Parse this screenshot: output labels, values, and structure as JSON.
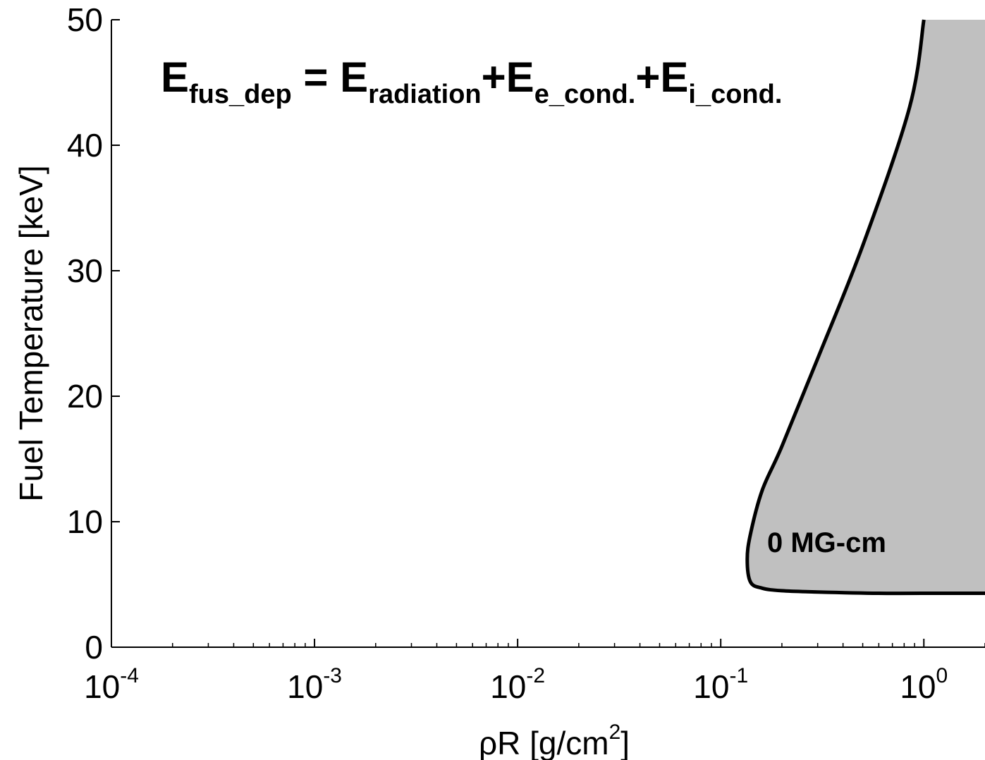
{
  "chart_data": {
    "type": "area",
    "title": "",
    "equation": {
      "lhs_main": "E",
      "lhs_sub": "fus_dep",
      "equals": " = ",
      "t1_main": "E",
      "t1_sub": "radiation",
      "plus1": "+",
      "t2_main": "E",
      "t2_sub": "e_cond.",
      "plus2": "+",
      "t3_main": "E",
      "t3_sub": "i_cond."
    },
    "xlabel": {
      "prefix": "ρR [g/cm",
      "sup": "2",
      "suffix": "]"
    },
    "ylabel": "Fuel Temperature [keV]",
    "x_scale": "log",
    "xlim": [
      0.0001,
      2
    ],
    "ylim": [
      0,
      50
    ],
    "x_ticks": [
      {
        "base": "10",
        "exp": "-4",
        "value": 0.0001
      },
      {
        "base": "10",
        "exp": "-3",
        "value": 0.001
      },
      {
        "base": "10",
        "exp": "-2",
        "value": 0.01
      },
      {
        "base": "10",
        "exp": "-1",
        "value": 0.1
      },
      {
        "base": "10",
        "exp": "0",
        "value": 1
      }
    ],
    "y_ticks": [
      "0",
      "10",
      "20",
      "30",
      "40",
      "50"
    ],
    "grid": false,
    "fill_color": "#c0c0c0",
    "line_color": "#000000",
    "region_label": "0 MG-cm",
    "series": [
      {
        "x": [
          2.0,
          1.2,
          0.6,
          0.3,
          0.2,
          0.16,
          0.14,
          0.135,
          0.14,
          0.16,
          0.2,
          0.3,
          0.5,
          0.85,
          1.0
        ],
        "y": [
          4.3,
          4.3,
          4.3,
          4.4,
          4.5,
          4.7,
          5.2,
          7.0,
          9.0,
          12.5,
          16.0,
          23.0,
          32.0,
          43.0,
          50.0
        ]
      }
    ]
  }
}
